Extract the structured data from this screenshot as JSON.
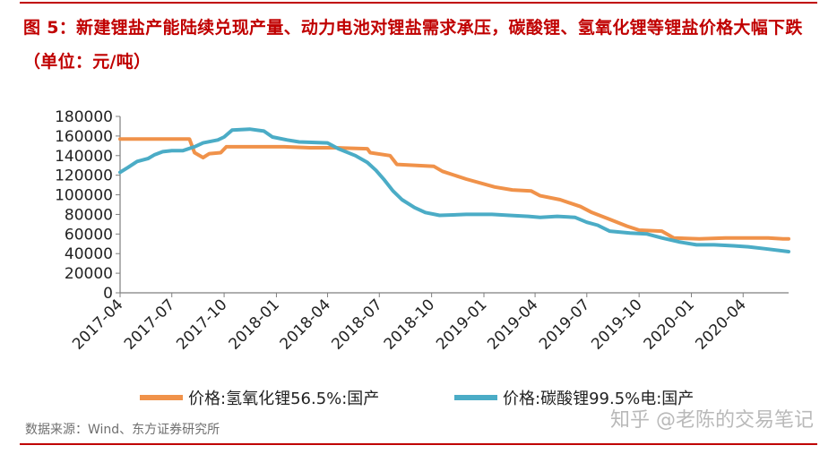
{
  "figure": {
    "title": "图 5：新建锂盐产能陆续兑现产量、动力电池对锂盐需求承压，碳酸锂、氢氧化锂等锂盐价格大幅下跌（单位：元/吨）",
    "source": "数据来源：Wind、东方证券研究所",
    "watermark": "知乎 @老陈的交易笔记"
  },
  "chart_data": {
    "type": "line",
    "x_tick_labels": [
      "2017-04",
      "2017-07",
      "2017-10",
      "2018-01",
      "2018-04",
      "2018-07",
      "2018-10",
      "2019-01",
      "2019-04",
      "2019-07",
      "2019-10",
      "2020-01",
      "2020-04"
    ],
    "y_ticks": [
      0,
      20000,
      40000,
      60000,
      80000,
      100000,
      120000,
      140000,
      160000,
      180000
    ],
    "ylim": [
      0,
      180000
    ],
    "grid": false,
    "legend_position": "bottom",
    "colors": {
      "hydroxide": "#f0924a",
      "carbonate": "#4bacc6"
    },
    "series": [
      {
        "name": "价格:氢氧化锂56.5%:国产",
        "points": [
          [
            "2017-04-01",
            157000
          ],
          [
            "2017-05-15",
            157000
          ],
          [
            "2017-06-30",
            157000
          ],
          [
            "2017-08-01",
            157000
          ],
          [
            "2017-08-10",
            143000
          ],
          [
            "2017-08-25",
            138000
          ],
          [
            "2017-09-05",
            142000
          ],
          [
            "2017-09-25",
            143000
          ],
          [
            "2017-10-05",
            149000
          ],
          [
            "2017-12-01",
            149000
          ],
          [
            "2018-01-15",
            149000
          ],
          [
            "2018-03-01",
            148000
          ],
          [
            "2018-04-15",
            148000
          ],
          [
            "2018-06-10",
            147000
          ],
          [
            "2018-06-15",
            143000
          ],
          [
            "2018-07-20",
            140000
          ],
          [
            "2018-08-01",
            131000
          ],
          [
            "2018-10-05",
            129000
          ],
          [
            "2018-10-20",
            124000
          ],
          [
            "2018-12-01",
            116000
          ],
          [
            "2019-01-20",
            108000
          ],
          [
            "2019-02-20",
            105000
          ],
          [
            "2019-03-25",
            104000
          ],
          [
            "2019-04-10",
            99000
          ],
          [
            "2019-05-15",
            95000
          ],
          [
            "2019-06-20",
            88000
          ],
          [
            "2019-07-10",
            82000
          ],
          [
            "2019-08-10",
            75000
          ],
          [
            "2019-09-10",
            68000
          ],
          [
            "2019-10-01",
            64000
          ],
          [
            "2019-11-10",
            63000
          ],
          [
            "2019-12-01",
            56000
          ],
          [
            "2020-01-15",
            55000
          ],
          [
            "2020-03-01",
            56000
          ],
          [
            "2020-05-15",
            56000
          ],
          [
            "2020-06-10",
            55000
          ],
          [
            "2020-06-20",
            55000
          ]
        ]
      },
      {
        "name": "价格:碳酸锂99.5%电:国产",
        "points": [
          [
            "2017-04-01",
            123000
          ],
          [
            "2017-04-15",
            128000
          ],
          [
            "2017-05-01",
            134000
          ],
          [
            "2017-05-20",
            137000
          ],
          [
            "2017-06-01",
            141000
          ],
          [
            "2017-06-15",
            144000
          ],
          [
            "2017-07-01",
            145000
          ],
          [
            "2017-07-20",
            145000
          ],
          [
            "2017-08-10",
            149000
          ],
          [
            "2017-08-25",
            153000
          ],
          [
            "2017-09-20",
            156000
          ],
          [
            "2017-10-01",
            159000
          ],
          [
            "2017-10-15",
            166000
          ],
          [
            "2017-11-15",
            167000
          ],
          [
            "2017-12-10",
            165000
          ],
          [
            "2017-12-25",
            159000
          ],
          [
            "2018-01-20",
            156000
          ],
          [
            "2018-02-10",
            154000
          ],
          [
            "2018-04-01",
            153000
          ],
          [
            "2018-04-20",
            147000
          ],
          [
            "2018-05-20",
            140000
          ],
          [
            "2018-06-10",
            133000
          ],
          [
            "2018-06-25",
            125000
          ],
          [
            "2018-07-10",
            115000
          ],
          [
            "2018-07-25",
            104000
          ],
          [
            "2018-08-10",
            95000
          ],
          [
            "2018-09-01",
            87000
          ],
          [
            "2018-09-20",
            82000
          ],
          [
            "2018-10-15",
            79000
          ],
          [
            "2018-12-01",
            80000
          ],
          [
            "2019-01-15",
            80000
          ],
          [
            "2019-02-15",
            79000
          ],
          [
            "2019-03-20",
            78000
          ],
          [
            "2019-04-10",
            77000
          ],
          [
            "2019-05-10",
            78000
          ],
          [
            "2019-06-10",
            77000
          ],
          [
            "2019-07-01",
            72000
          ],
          [
            "2019-07-20",
            69000
          ],
          [
            "2019-08-10",
            63000
          ],
          [
            "2019-09-15",
            61000
          ],
          [
            "2019-10-15",
            60000
          ],
          [
            "2019-11-10",
            56000
          ],
          [
            "2019-12-10",
            52000
          ],
          [
            "2020-01-10",
            49000
          ],
          [
            "2020-02-10",
            49000
          ],
          [
            "2020-03-15",
            48000
          ],
          [
            "2020-04-10",
            47000
          ],
          [
            "2020-05-10",
            45000
          ],
          [
            "2020-06-20",
            42000
          ]
        ]
      }
    ]
  }
}
